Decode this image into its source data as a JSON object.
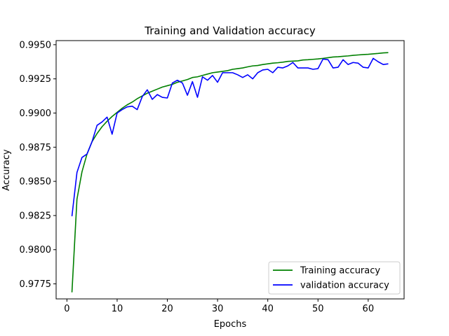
{
  "chart_data": {
    "type": "line",
    "title": "Training and Validation accuracy",
    "xlabel": "Epochs",
    "ylabel": "Accuracy",
    "xlim": [
      -2.15,
      67.15
    ],
    "ylim": [
      0.9764,
      0.9953
    ],
    "xticks": [
      0,
      10,
      20,
      30,
      40,
      50,
      60
    ],
    "yticks": [
      0.9775,
      0.98,
      0.9825,
      0.985,
      0.9875,
      0.99,
      0.9925,
      0.995
    ],
    "ytick_labels": [
      "0.9775",
      "0.9800",
      "0.9825",
      "0.9850",
      "0.9875",
      "0.9900",
      "0.9925",
      "0.9950"
    ],
    "xtick_labels": [
      "0",
      "10",
      "20",
      "30",
      "40",
      "50",
      "60"
    ],
    "grid": false,
    "legend_position": "lower-right",
    "x": [
      1,
      2,
      3,
      4,
      5,
      6,
      7,
      8,
      9,
      10,
      11,
      12,
      13,
      14,
      15,
      16,
      17,
      18,
      19,
      20,
      21,
      22,
      23,
      24,
      25,
      26,
      27,
      28,
      29,
      30,
      31,
      32,
      33,
      34,
      35,
      36,
      37,
      38,
      39,
      40,
      41,
      42,
      43,
      44,
      45,
      46,
      47,
      48,
      49,
      50,
      51,
      52,
      53,
      54,
      55,
      56,
      57,
      58,
      59,
      60,
      61,
      62,
      63,
      64
    ],
    "series": [
      {
        "name": "Training accuracy",
        "color": "#008000",
        "values": [
          0.97688,
          0.9837,
          0.9857,
          0.987,
          0.9879,
          0.9885,
          0.989,
          0.9894,
          0.98975,
          0.99005,
          0.99035,
          0.9906,
          0.9908,
          0.99105,
          0.99125,
          0.99145,
          0.9916,
          0.99175,
          0.9919,
          0.992,
          0.9921,
          0.99225,
          0.99235,
          0.99245,
          0.9926,
          0.99265,
          0.99275,
          0.99285,
          0.99295,
          0.993,
          0.99305,
          0.9931,
          0.9932,
          0.99325,
          0.9933,
          0.99338,
          0.99345,
          0.99348,
          0.99355,
          0.9936,
          0.99365,
          0.99368,
          0.99372,
          0.99378,
          0.9938,
          0.99382,
          0.99388,
          0.9939,
          0.99393,
          0.99396,
          0.994,
          0.99405,
          0.9941,
          0.99412,
          0.99415,
          0.99418,
          0.99422,
          0.99425,
          0.99428,
          0.9943,
          0.99433,
          0.99436,
          0.9944,
          0.99442
        ]
      },
      {
        "name": "validation accuracy",
        "color": "#0000ff",
        "values": [
          0.98245,
          0.98565,
          0.98675,
          0.987,
          0.9879,
          0.9891,
          0.98935,
          0.9897,
          0.98845,
          0.99,
          0.99025,
          0.99045,
          0.9905,
          0.99025,
          0.9912,
          0.9917,
          0.991,
          0.99135,
          0.99115,
          0.9911,
          0.9922,
          0.9924,
          0.9922,
          0.9913,
          0.9923,
          0.99115,
          0.99265,
          0.9924,
          0.99275,
          0.99225,
          0.99295,
          0.99295,
          0.99295,
          0.9928,
          0.9926,
          0.9928,
          0.9925,
          0.99295,
          0.99315,
          0.9932,
          0.99295,
          0.99335,
          0.9933,
          0.99345,
          0.9937,
          0.9933,
          0.9933,
          0.9933,
          0.9932,
          0.99325,
          0.99395,
          0.9939,
          0.9933,
          0.99335,
          0.9939,
          0.99355,
          0.9937,
          0.99365,
          0.99335,
          0.9933,
          0.994,
          0.99375,
          0.99355,
          0.9936
        ]
      }
    ]
  }
}
